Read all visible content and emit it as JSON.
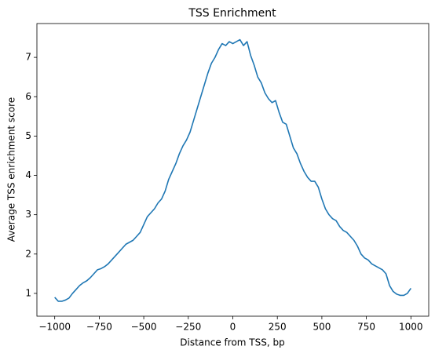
{
  "chart_data": {
    "type": "line",
    "title": "TSS Enrichment",
    "x_label": "Distance from TSS, bp",
    "y_label": "Average TSS enrichment score",
    "color": "#1f77b4",
    "x": [
      -1000,
      -980,
      -960,
      -940,
      -920,
      -900,
      -880,
      -860,
      -840,
      -820,
      -800,
      -780,
      -760,
      -740,
      -720,
      -700,
      -680,
      -660,
      -640,
      -620,
      -600,
      -580,
      -560,
      -540,
      -520,
      -500,
      -480,
      -460,
      -440,
      -420,
      -400,
      -380,
      -360,
      -340,
      -320,
      -300,
      -280,
      -260,
      -240,
      -220,
      -200,
      -180,
      -160,
      -140,
      -120,
      -100,
      -80,
      -60,
      -40,
      -20,
      0,
      20,
      40,
      60,
      80,
      100,
      120,
      140,
      160,
      180,
      200,
      220,
      240,
      260,
      280,
      300,
      320,
      340,
      360,
      380,
      400,
      420,
      440,
      460,
      480,
      500,
      520,
      540,
      560,
      580,
      600,
      620,
      640,
      660,
      680,
      700,
      720,
      740,
      760,
      780,
      800,
      820,
      840,
      860,
      880,
      900,
      920,
      940,
      960,
      980,
      1000
    ],
    "values": [
      0.9,
      0.8,
      0.8,
      0.83,
      0.88,
      1.0,
      1.1,
      1.2,
      1.27,
      1.32,
      1.4,
      1.5,
      1.6,
      1.63,
      1.68,
      1.75,
      1.85,
      1.95,
      2.05,
      2.15,
      2.25,
      2.3,
      2.35,
      2.45,
      2.55,
      2.75,
      2.95,
      3.05,
      3.15,
      3.3,
      3.4,
      3.6,
      3.9,
      4.1,
      4.3,
      4.55,
      4.75,
      4.9,
      5.1,
      5.4,
      5.7,
      6.0,
      6.3,
      6.6,
      6.85,
      7.0,
      7.2,
      7.35,
      7.3,
      7.4,
      7.35,
      7.4,
      7.45,
      7.3,
      7.4,
      7.05,
      6.8,
      6.5,
      6.35,
      6.1,
      5.95,
      5.85,
      5.9,
      5.6,
      5.35,
      5.3,
      5.0,
      4.7,
      4.55,
      4.3,
      4.1,
      3.95,
      3.85,
      3.85,
      3.7,
      3.4,
      3.15,
      3.0,
      2.9,
      2.85,
      2.7,
      2.6,
      2.55,
      2.45,
      2.35,
      2.2,
      2.0,
      1.9,
      1.85,
      1.75,
      1.7,
      1.65,
      1.6,
      1.5,
      1.2,
      1.05,
      0.98,
      0.95,
      0.95,
      1.0,
      1.13
    ],
    "xlim": [
      -1100,
      1100
    ],
    "ylim": [
      0.42,
      7.86
    ],
    "xticks": [
      {
        "value": -1000,
        "label": "−1000"
      },
      {
        "value": -750,
        "label": "−750"
      },
      {
        "value": -500,
        "label": "−500"
      },
      {
        "value": -250,
        "label": "−250"
      },
      0,
      250,
      500,
      750,
      1000
    ],
    "yticks": [
      1,
      2,
      3,
      4,
      5,
      6,
      7
    ],
    "grid": false
  }
}
